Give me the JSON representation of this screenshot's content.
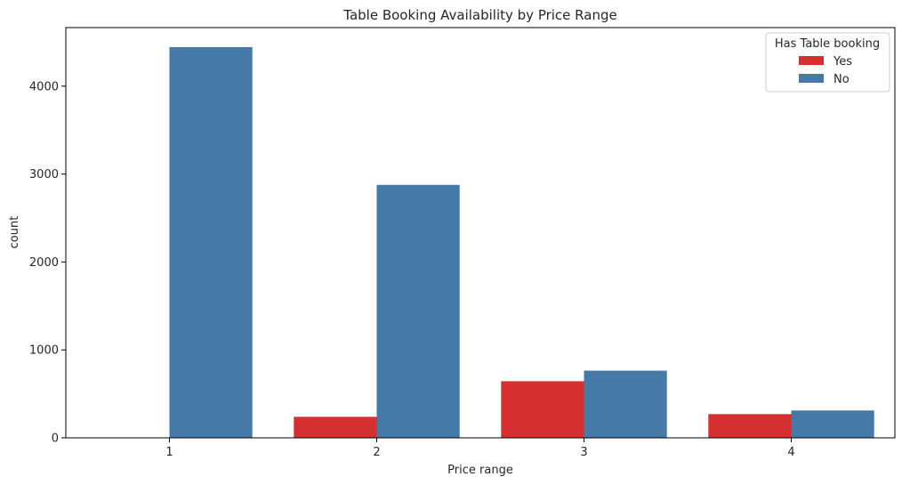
{
  "chart_data": {
    "type": "bar",
    "title": "Table Booking Availability by Price Range",
    "xlabel": "Price range",
    "ylabel": "count",
    "categories": [
      "1",
      "2",
      "3",
      "4"
    ],
    "series": [
      {
        "name": "Yes",
        "color": "#d62f2f",
        "values": [
          0,
          239,
          644,
          270
        ]
      },
      {
        "name": "No",
        "color": "#4479a8",
        "values": [
          4444,
          2877,
          764,
          311
        ]
      }
    ],
    "ylim": [
      0,
      4666
    ],
    "yticks": [
      0,
      1000,
      2000,
      3000,
      4000
    ],
    "grid": false,
    "legend": {
      "title": "Has Table booking",
      "placement": "top-right"
    }
  }
}
